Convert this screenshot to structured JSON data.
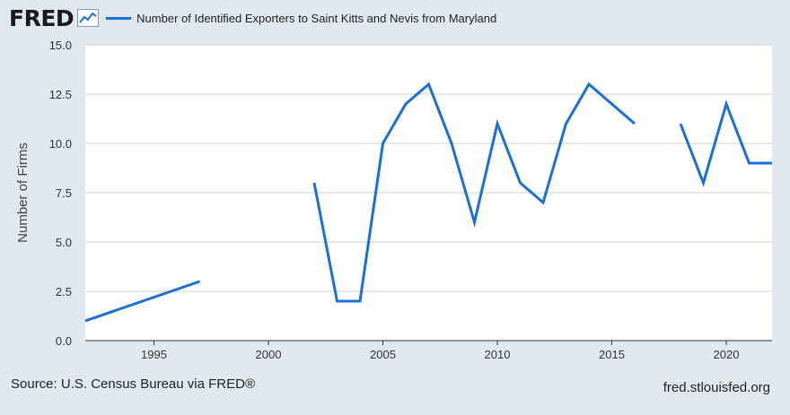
{
  "header": {
    "logo": "FRED",
    "logo_icon": "line-chart-icon",
    "series_title": "Number of Identified Exporters to Saint Kitts and Nevis from Maryland"
  },
  "footer": {
    "source": "Source: U.S. Census Bureau via FRED®",
    "site": "fred.stlouisfed.org"
  },
  "colors": {
    "line": "#1c6fd6",
    "plot_bg": "#ffffff",
    "page_bg": "#e1e9f0",
    "grid": "#d0d0d0"
  },
  "chart_data": {
    "type": "line",
    "title": "Number of Identified Exporters to Saint Kitts and Nevis from Maryland",
    "xlabel": "",
    "ylabel": "Number of Firms",
    "xlim": [
      1992,
      2022
    ],
    "ylim": [
      0,
      15
    ],
    "x_ticks": [
      "1995",
      "2000",
      "2005",
      "2010",
      "2015",
      "2020"
    ],
    "y_ticks": [
      "0.0",
      "2.5",
      "5.0",
      "7.5",
      "10.0",
      "12.5",
      "15.0"
    ],
    "grid": true,
    "series": [
      {
        "name": "Number of Identified Exporters to Saint Kitts and Nevis from Maryland",
        "x": [
          1992,
          1997,
          2002,
          2003,
          2004,
          2005,
          2006,
          2007,
          2008,
          2009,
          2010,
          2011,
          2012,
          2013,
          2014,
          2015,
          2016,
          2018,
          2019,
          2020,
          2021,
          2022
        ],
        "y": [
          1,
          3,
          8,
          2,
          2,
          10,
          12,
          13,
          10,
          6,
          11,
          8,
          7,
          11,
          13,
          12,
          11,
          11,
          8,
          12,
          9,
          9
        ],
        "segments": [
          [
            0,
            1
          ],
          [
            2,
            16
          ],
          [
            17,
            21
          ]
        ]
      }
    ]
  }
}
